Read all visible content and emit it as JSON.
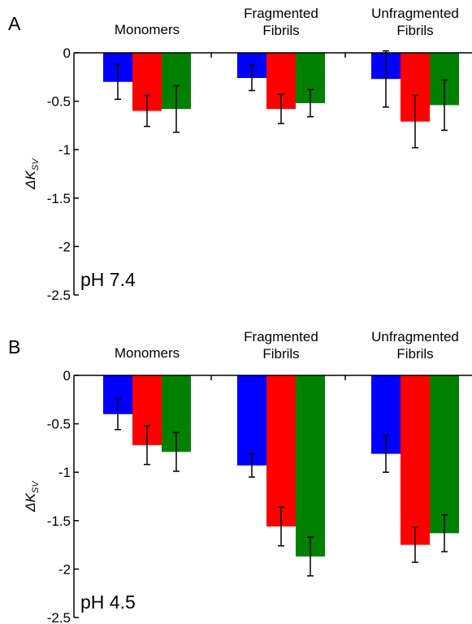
{
  "chart_data": [
    {
      "type": "bar",
      "panel_label": "A",
      "annotation": "pH 7.4",
      "categories": [
        "Monomers",
        "Fragmented\nFibrils",
        "Unfragmented\nFibrils"
      ],
      "ylabel_main": "ΔK",
      "ylabel_sub": "SV",
      "ylim": [
        -2.5,
        0
      ],
      "yticks": [
        "0",
        "-0.5",
        "-1",
        "-1.5",
        "-2",
        "-2.5"
      ],
      "ytick_values": [
        0,
        -0.5,
        -1,
        -1.5,
        -2,
        -2.5
      ],
      "colors": [
        "#0000ff",
        "#ff0000",
        "#008000"
      ],
      "series": [
        {
          "values": [
            -0.3,
            -0.26,
            -0.27
          ],
          "errors": [
            0.18,
            0.13,
            0.29
          ]
        },
        {
          "values": [
            -0.6,
            -0.58,
            -0.71
          ],
          "errors": [
            0.16,
            0.15,
            0.27
          ]
        },
        {
          "values": [
            -0.58,
            -0.52,
            -0.54
          ],
          "errors": [
            0.24,
            0.14,
            0.26
          ]
        }
      ]
    },
    {
      "type": "bar",
      "panel_label": "B",
      "annotation": "pH 4.5",
      "categories": [
        "Monomers",
        "Fragmented\nFibrils",
        "Unfragmented\nFibrils"
      ],
      "ylabel_main": "ΔK",
      "ylabel_sub": "SV",
      "ylim": [
        -2.5,
        0
      ],
      "yticks": [
        "0",
        "-0.5",
        "-1",
        "-1.5",
        "-2",
        "-2.5"
      ],
      "ytick_values": [
        0,
        -0.5,
        -1,
        -1.5,
        -2,
        -2.5
      ],
      "colors": [
        "#0000ff",
        "#ff0000",
        "#008000"
      ],
      "series": [
        {
          "values": [
            -0.4,
            -0.93,
            -0.81
          ],
          "errors": [
            0.16,
            0.12,
            0.19
          ]
        },
        {
          "values": [
            -0.72,
            -1.56,
            -1.75
          ],
          "errors": [
            0.2,
            0.2,
            0.18
          ]
        },
        {
          "values": [
            -0.79,
            -1.87,
            -1.63
          ],
          "errors": [
            0.2,
            0.2,
            0.19
          ]
        }
      ]
    }
  ]
}
